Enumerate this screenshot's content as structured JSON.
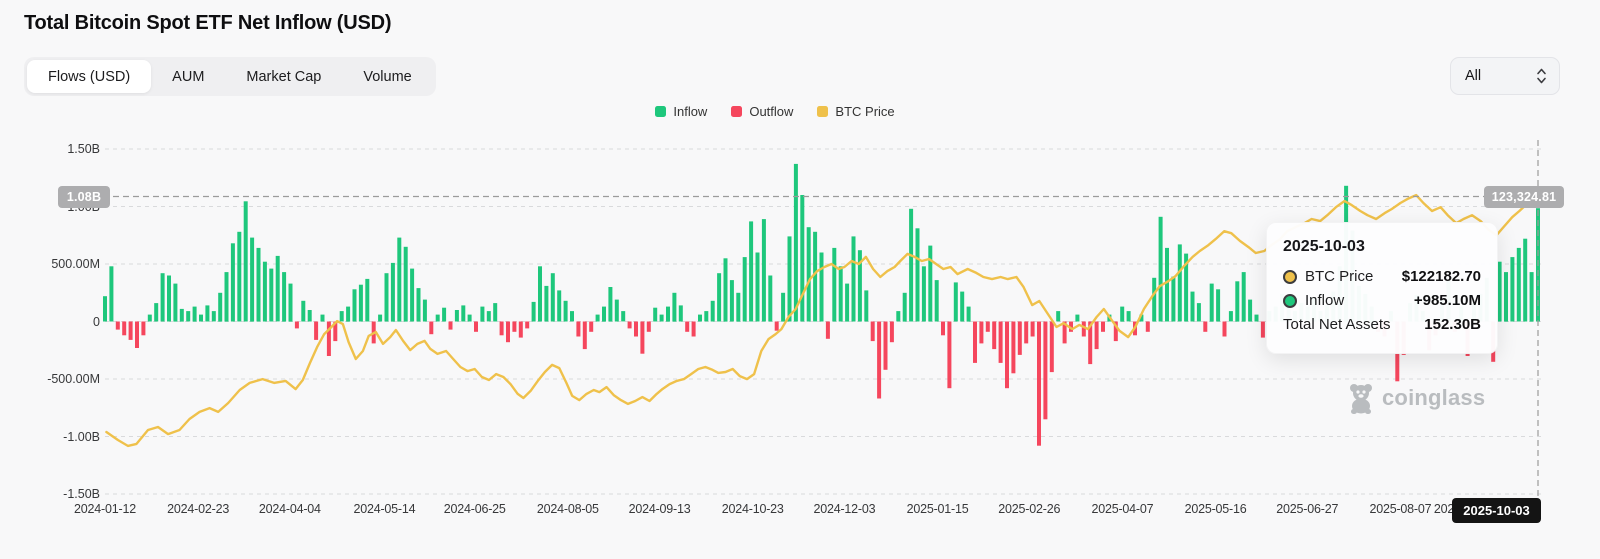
{
  "page": {
    "title": "Total Bitcoin Spot ETF Net Inflow (USD)"
  },
  "tabs": [
    {
      "label": "Flows (USD)",
      "active": true
    },
    {
      "label": "AUM",
      "active": false
    },
    {
      "label": "Market Cap",
      "active": false
    },
    {
      "label": "Volume",
      "active": false
    }
  ],
  "range_select": {
    "value": "All"
  },
  "legend": [
    {
      "label": "Inflow",
      "color": "#1EC77C"
    },
    {
      "label": "Outflow",
      "color": "#F5465D"
    },
    {
      "label": "BTC Price",
      "color": "#EFC14B"
    }
  ],
  "watermark": {
    "text": "coinglass"
  },
  "crosshair": {
    "flow_axis_label": "1.08B",
    "price_axis_label": "123,324.81",
    "date_label": "2025-10-03"
  },
  "tooltip": {
    "date": "2025-10-03",
    "rows": [
      {
        "dot": "#EFC14B",
        "label": "BTC Price",
        "value": "$122182.70"
      },
      {
        "dot": "#1EC77C",
        "label": "Inflow",
        "value": "+985.10M"
      },
      {
        "dot": null,
        "label": "Total Net Assets",
        "value": "152.30B"
      }
    ]
  },
  "chart_data": {
    "type": "bar+line",
    "title": "Total Bitcoin Spot ETF Net Inflow (USD)",
    "legend": [
      "Inflow",
      "Outflow",
      "BTC Price"
    ],
    "colors": {
      "inflow": "#1EC77C",
      "outflow": "#F5465D",
      "price": "#EFC14B",
      "grid": "#d9dadc",
      "crosshair": "#9b9b9b"
    },
    "y_axis": {
      "unit": "USD flows",
      "range_M": [
        -1500,
        1500
      ],
      "ticks": [
        {
          "label": "1.50B",
          "value_M": 1500
        },
        {
          "label": "1.00B",
          "value_M": 1000
        },
        {
          "label": "500.00M",
          "value_M": 500
        },
        {
          "label": "0",
          "value_M": 0
        },
        {
          "label": "-500.00M",
          "value_M": -500
        },
        {
          "label": "-1.00B",
          "value_M": -1000
        },
        {
          "label": "-1.50B",
          "value_M": -1500
        }
      ]
    },
    "x_axis": {
      "ticks": [
        {
          "label": "2024-01-12",
          "pct": 0.0
        },
        {
          "label": "2024-02-23",
          "pct": 6.5
        },
        {
          "label": "2024-04-04",
          "pct": 12.9
        },
        {
          "label": "2024-05-14",
          "pct": 19.5
        },
        {
          "label": "2024-06-25",
          "pct": 25.8
        },
        {
          "label": "2024-08-05",
          "pct": 32.3
        },
        {
          "label": "2024-09-13",
          "pct": 38.7
        },
        {
          "label": "2024-10-23",
          "pct": 45.2
        },
        {
          "label": "2024-12-03",
          "pct": 51.6
        },
        {
          "label": "2025-01-15",
          "pct": 58.1
        },
        {
          "label": "2025-02-26",
          "pct": 64.5
        },
        {
          "label": "2025-04-07",
          "pct": 71.0
        },
        {
          "label": "2025-05-16",
          "pct": 77.5
        },
        {
          "label": "2025-06-27",
          "pct": 83.9
        },
        {
          "label": "2025-08-07",
          "pct": 90.4
        },
        {
          "label": "2025-09-16",
          "pct": 94.9
        }
      ]
    },
    "flows_M": [
      220,
      480,
      -70,
      -120,
      -160,
      -230,
      -120,
      60,
      160,
      420,
      400,
      330,
      110,
      90,
      130,
      60,
      140,
      90,
      250,
      430,
      680,
      780,
      1045,
      730,
      640,
      520,
      460,
      570,
      430,
      330,
      -60,
      180,
      100,
      -160,
      60,
      -300,
      -170,
      90,
      130,
      280,
      320,
      370,
      -190,
      60,
      420,
      510,
      730,
      650,
      460,
      290,
      190,
      -110,
      60,
      120,
      -70,
      100,
      140,
      60,
      -90,
      130,
      90,
      160,
      -120,
      -180,
      -90,
      -140,
      -60,
      170,
      480,
      310,
      420,
      270,
      180,
      90,
      -130,
      -240,
      -90,
      60,
      130,
      300,
      190,
      90,
      -60,
      -130,
      -280,
      -90,
      120,
      60,
      130,
      250,
      140,
      -90,
      -130,
      60,
      90,
      180,
      420,
      550,
      360,
      250,
      560,
      870,
      600,
      890,
      400,
      -80,
      250,
      740,
      1370,
      1100,
      820,
      780,
      600,
      -150,
      640,
      480,
      330,
      740,
      620,
      270,
      -170,
      -670,
      -420,
      -180,
      90,
      250,
      980,
      810,
      480,
      660,
      360,
      -120,
      -580,
      340,
      260,
      130,
      -360,
      -190,
      -90,
      -240,
      -360,
      -580,
      -450,
      -290,
      -190,
      -130,
      -1080,
      -850,
      -440,
      90,
      -190,
      -90,
      60,
      -130,
      -370,
      -240,
      -90,
      60,
      -170,
      130,
      90,
      -120,
      60,
      -90,
      380,
      910,
      640,
      390,
      670,
      590,
      260,
      160,
      -90,
      330,
      280,
      -130,
      90,
      350,
      430,
      190,
      60,
      -140,
      90,
      130,
      240,
      180,
      90,
      160,
      130,
      210,
      90,
      140,
      260,
      480,
      1180,
      790,
      310,
      240,
      130,
      -90,
      -130,
      90,
      -520,
      -290,
      160,
      230,
      90,
      -250,
      -120,
      190,
      360,
      -90,
      130,
      -300,
      160,
      240,
      380,
      -350,
      520,
      430,
      560,
      640,
      720,
      430,
      985
    ],
    "btc_price": {
      "hover_value": 122182.7,
      "axis_value_at_crosshair": 123324.81,
      "points_pct_usd": [
        [
          0.1,
          43600
        ],
        [
          0.9,
          40900
        ],
        [
          1.6,
          38900
        ],
        [
          2.2,
          39600
        ],
        [
          3.0,
          44300
        ],
        [
          3.7,
          45300
        ],
        [
          4.4,
          42900
        ],
        [
          5.2,
          44300
        ],
        [
          5.9,
          48000
        ],
        [
          6.6,
          50400
        ],
        [
          7.3,
          51700
        ],
        [
          7.9,
          50400
        ],
        [
          8.6,
          53400
        ],
        [
          9.4,
          57800
        ],
        [
          10.1,
          60200
        ],
        [
          11.0,
          61500
        ],
        [
          11.8,
          60200
        ],
        [
          12.6,
          60900
        ],
        [
          13.3,
          58100
        ],
        [
          13.8,
          61200
        ],
        [
          14.3,
          66900
        ],
        [
          14.8,
          72300
        ],
        [
          15.3,
          76700
        ],
        [
          15.8,
          79100
        ],
        [
          16.2,
          81100
        ],
        [
          16.6,
          80100
        ],
        [
          17.0,
          74000
        ],
        [
          17.5,
          68300
        ],
        [
          18.0,
          71000
        ],
        [
          18.4,
          76100
        ],
        [
          18.9,
          77400
        ],
        [
          19.4,
          73400
        ],
        [
          19.9,
          75700
        ],
        [
          20.3,
          78100
        ],
        [
          20.8,
          74400
        ],
        [
          21.3,
          71300
        ],
        [
          21.8,
          73400
        ],
        [
          22.3,
          74400
        ],
        [
          22.7,
          71700
        ],
        [
          23.2,
          70000
        ],
        [
          23.8,
          71000
        ],
        [
          24.3,
          68300
        ],
        [
          24.8,
          65600
        ],
        [
          25.3,
          64200
        ],
        [
          25.8,
          64900
        ],
        [
          26.3,
          62200
        ],
        [
          26.8,
          61200
        ],
        [
          27.3,
          63200
        ],
        [
          27.8,
          62200
        ],
        [
          28.3,
          59800
        ],
        [
          28.8,
          56500
        ],
        [
          29.2,
          55100
        ],
        [
          29.7,
          57500
        ],
        [
          30.2,
          60900
        ],
        [
          30.7,
          63900
        ],
        [
          31.2,
          66300
        ],
        [
          31.7,
          65200
        ],
        [
          32.2,
          60200
        ],
        [
          32.6,
          55800
        ],
        [
          33.1,
          54400
        ],
        [
          33.6,
          56500
        ],
        [
          34.1,
          57800
        ],
        [
          34.5,
          57100
        ],
        [
          35.0,
          58800
        ],
        [
          35.5,
          56100
        ],
        [
          36.0,
          54400
        ],
        [
          36.5,
          53100
        ],
        [
          37.0,
          54100
        ],
        [
          37.5,
          55400
        ],
        [
          38.0,
          54100
        ],
        [
          38.5,
          56500
        ],
        [
          38.9,
          58100
        ],
        [
          39.4,
          59800
        ],
        [
          39.9,
          60900
        ],
        [
          40.4,
          61500
        ],
        [
          40.9,
          63200
        ],
        [
          41.4,
          64900
        ],
        [
          41.9,
          65600
        ],
        [
          42.4,
          64600
        ],
        [
          42.8,
          63600
        ],
        [
          43.3,
          63900
        ],
        [
          43.8,
          64900
        ],
        [
          44.3,
          62500
        ],
        [
          44.8,
          61500
        ],
        [
          45.3,
          63200
        ],
        [
          45.8,
          71000
        ],
        [
          46.3,
          75000
        ],
        [
          46.8,
          76700
        ],
        [
          47.2,
          78400
        ],
        [
          47.7,
          82500
        ],
        [
          48.2,
          85200
        ],
        [
          48.7,
          90300
        ],
        [
          49.2,
          95300
        ],
        [
          49.7,
          98000
        ],
        [
          50.2,
          99400
        ],
        [
          50.7,
          100400
        ],
        [
          51.2,
          98700
        ],
        [
          51.6,
          99400
        ],
        [
          52.1,
          101400
        ],
        [
          52.6,
          100400
        ],
        [
          53.1,
          102800
        ],
        [
          53.6,
          98700
        ],
        [
          54.1,
          96000
        ],
        [
          54.6,
          98000
        ],
        [
          55.1,
          99400
        ],
        [
          55.5,
          101400
        ],
        [
          56.0,
          103800
        ],
        [
          56.5,
          102800
        ],
        [
          57.0,
          101400
        ],
        [
          57.5,
          102100
        ],
        [
          58.0,
          100400
        ],
        [
          58.5,
          98700
        ],
        [
          59.0,
          99400
        ],
        [
          59.5,
          97000
        ],
        [
          60.2,
          98700
        ],
        [
          60.8,
          97400
        ],
        [
          61.3,
          96000
        ],
        [
          61.9,
          95300
        ],
        [
          62.5,
          96000
        ],
        [
          63.0,
          95300
        ],
        [
          63.6,
          96000
        ],
        [
          64.1,
          92600
        ],
        [
          64.7,
          86500
        ],
        [
          65.2,
          87900
        ],
        [
          65.8,
          83500
        ],
        [
          66.4,
          79100
        ],
        [
          66.9,
          80400
        ],
        [
          67.5,
          78400
        ],
        [
          68.0,
          79800
        ],
        [
          68.6,
          78400
        ],
        [
          69.2,
          82500
        ],
        [
          69.7,
          85200
        ],
        [
          70.3,
          81100
        ],
        [
          70.8,
          77800
        ],
        [
          71.4,
          75700
        ],
        [
          71.9,
          79100
        ],
        [
          72.5,
          85200
        ],
        [
          73.1,
          89600
        ],
        [
          73.6,
          92900
        ],
        [
          74.2,
          94600
        ],
        [
          74.7,
          96300
        ],
        [
          75.3,
          99700
        ],
        [
          75.9,
          102800
        ],
        [
          76.4,
          104800
        ],
        [
          77.0,
          106800
        ],
        [
          77.5,
          108800
        ],
        [
          78.1,
          111500
        ],
        [
          78.6,
          110800
        ],
        [
          79.2,
          108200
        ],
        [
          79.8,
          106100
        ],
        [
          80.3,
          104100
        ],
        [
          80.9,
          104800
        ],
        [
          81.4,
          106800
        ],
        [
          82.0,
          108800
        ],
        [
          82.5,
          111500
        ],
        [
          83.1,
          112900
        ],
        [
          83.7,
          114200
        ],
        [
          84.2,
          115600
        ],
        [
          84.8,
          114900
        ],
        [
          85.3,
          116900
        ],
        [
          85.9,
          119600
        ],
        [
          86.5,
          121700
        ],
        [
          87.0,
          120300
        ],
        [
          87.6,
          118300
        ],
        [
          88.1,
          116900
        ],
        [
          88.7,
          115600
        ],
        [
          89.3,
          117600
        ],
        [
          89.8,
          119000
        ],
        [
          90.4,
          121000
        ],
        [
          90.9,
          122400
        ],
        [
          91.5,
          123700
        ],
        [
          92.0,
          121000
        ],
        [
          92.6,
          118300
        ],
        [
          93.2,
          119600
        ],
        [
          93.7,
          116900
        ],
        [
          94.3,
          114200
        ],
        [
          94.8,
          115600
        ],
        [
          95.4,
          116900
        ],
        [
          96.0,
          114900
        ],
        [
          96.5,
          112200
        ],
        [
          97.1,
          110100
        ],
        [
          97.6,
          112900
        ],
        [
          98.2,
          116200
        ],
        [
          98.7,
          118300
        ],
        [
          99.3,
          121000
        ],
        [
          100.0,
          123325
        ]
      ]
    },
    "hover": {
      "date": "2025-10-03",
      "btc_price_usd": 122182.7,
      "inflow_M": 985.1,
      "total_net_assets": "152.30B",
      "flow_axis_crosshair": "1.08B"
    }
  }
}
